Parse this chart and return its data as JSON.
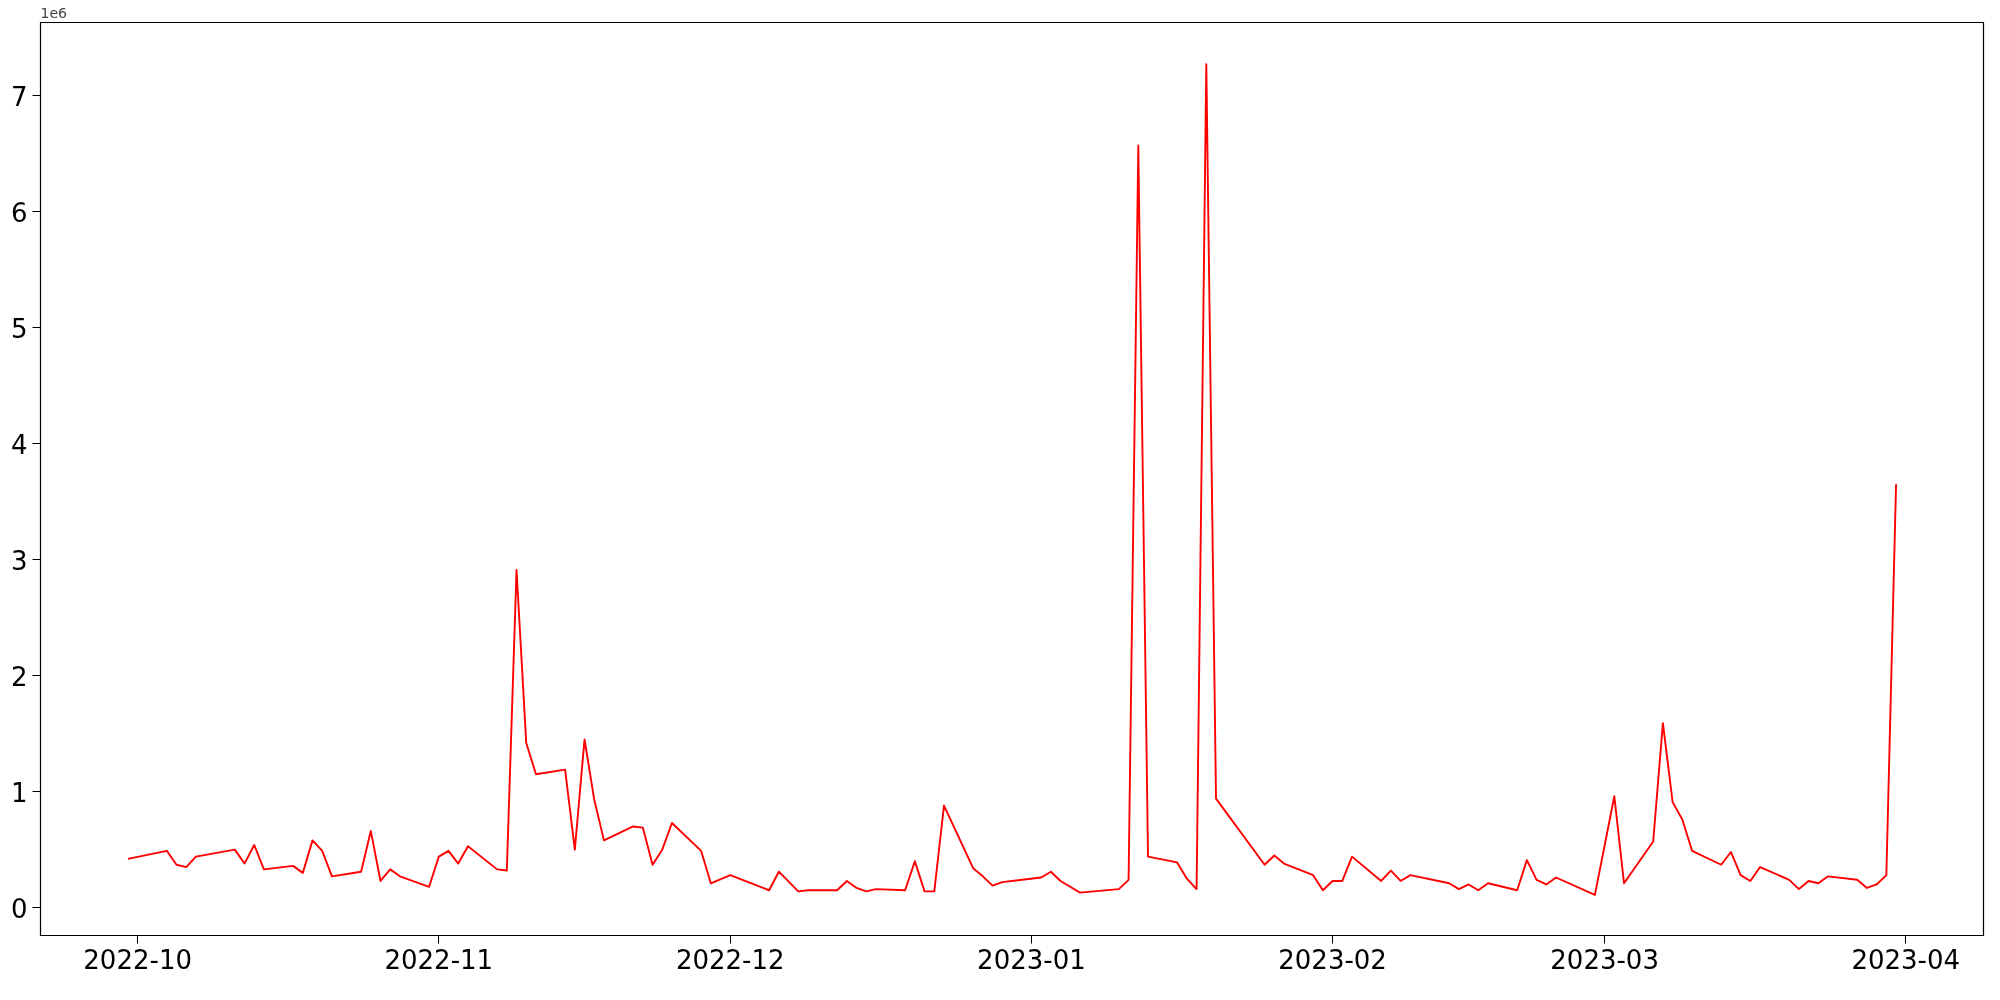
{
  "chart_data": {
    "type": "line",
    "grid": false,
    "marker": "none",
    "line_style": "solid",
    "xlim": [
      "2022-09-21",
      "2023-04-09"
    ],
    "xticks": [
      {
        "value": "2022-10-01",
        "label": "2022-10"
      },
      {
        "value": "2022-11-01",
        "label": "2022-11"
      },
      {
        "value": "2022-12-01",
        "label": "2022-12"
      },
      {
        "value": "2023-01-01",
        "label": "2023-01"
      },
      {
        "value": "2023-02-01",
        "label": "2023-02"
      },
      {
        "value": "2023-03-01",
        "label": "2023-03"
      },
      {
        "value": "2023-04-01",
        "label": "2023-04"
      }
    ],
    "ylim": [
      -0.24,
      7.63
    ],
    "yticks": [
      0,
      1,
      2,
      3,
      4,
      5,
      6,
      7
    ],
    "annotations": [
      "1e6"
    ],
    "x": [
      "2022-09-30",
      "2022-10-04",
      "2022-10-05",
      "2022-10-06",
      "2022-10-07",
      "2022-10-11",
      "2022-10-12",
      "2022-10-13",
      "2022-10-14",
      "2022-10-17",
      "2022-10-18",
      "2022-10-19",
      "2022-10-20",
      "2022-10-21",
      "2022-10-24",
      "2022-10-25",
      "2022-10-26",
      "2022-10-27",
      "2022-10-28",
      "2022-10-31",
      "2022-11-01",
      "2022-11-02",
      "2022-11-03",
      "2022-11-04",
      "2022-11-07",
      "2022-11-08",
      "2022-11-09",
      "2022-11-10",
      "2022-11-11",
      "2022-11-14",
      "2022-11-15",
      "2022-11-16",
      "2022-11-17",
      "2022-11-18",
      "2022-11-21",
      "2022-11-22",
      "2022-11-23",
      "2022-11-24",
      "2022-11-25",
      "2022-11-28",
      "2022-11-29",
      "2022-12-01",
      "2022-12-05",
      "2022-12-06",
      "2022-12-08",
      "2022-12-09",
      "2022-12-12",
      "2022-12-13",
      "2022-12-14",
      "2022-12-15",
      "2022-12-16",
      "2022-12-19",
      "2022-12-20",
      "2022-12-21",
      "2022-12-22",
      "2022-12-23",
      "2022-12-26",
      "2022-12-27",
      "2022-12-28",
      "2022-12-29",
      "2023-01-02",
      "2023-01-03",
      "2023-01-04",
      "2023-01-06",
      "2023-01-10",
      "2023-01-11",
      "2023-01-12",
      "2023-01-13",
      "2023-01-16",
      "2023-01-17",
      "2023-01-18",
      "2023-01-19",
      "2023-01-20",
      "2023-01-25",
      "2023-01-26",
      "2023-01-27",
      "2023-01-30",
      "2023-01-31",
      "2023-02-01",
      "2023-02-02",
      "2023-02-03",
      "2023-02-06",
      "2023-02-07",
      "2023-02-08",
      "2023-02-09",
      "2023-02-13",
      "2023-02-14",
      "2023-02-15",
      "2023-02-16",
      "2023-02-17",
      "2023-02-20",
      "2023-02-21",
      "2023-02-22",
      "2023-02-23",
      "2023-02-24",
      "2023-02-28",
      "2023-03-02",
      "2023-03-03",
      "2023-03-06",
      "2023-03-07",
      "2023-03-08",
      "2023-03-09",
      "2023-03-10",
      "2023-03-13",
      "2023-03-14",
      "2023-03-15",
      "2023-03-16",
      "2023-03-17",
      "2023-03-20",
      "2023-03-21",
      "2023-03-22",
      "2023-03-23",
      "2023-03-24",
      "2023-03-27",
      "2023-03-28",
      "2023-03-29",
      "2023-03-30",
      "2023-03-31"
    ],
    "series": [
      {
        "color": "#ff0000",
        "values": [
          0.42,
          0.49,
          0.37,
          0.35,
          0.44,
          0.5,
          0.38,
          0.54,
          0.33,
          0.36,
          0.3,
          0.58,
          0.49,
          0.27,
          0.31,
          0.66,
          0.23,
          0.33,
          0.27,
          0.18,
          0.44,
          0.49,
          0.38,
          0.53,
          0.33,
          0.32,
          2.91,
          1.42,
          1.15,
          1.19,
          0.5,
          1.45,
          0.93,
          0.58,
          0.7,
          0.69,
          0.37,
          0.5,
          0.73,
          0.49,
          0.21,
          0.28,
          0.15,
          0.31,
          0.14,
          0.15,
          0.15,
          0.23,
          0.17,
          0.14,
          0.16,
          0.15,
          0.4,
          0.14,
          0.14,
          0.88,
          0.34,
          0.27,
          0.19,
          0.22,
          0.26,
          0.31,
          0.23,
          0.13,
          0.16,
          0.24,
          6.57,
          0.44,
          0.39,
          0.25,
          0.16,
          7.27,
          0.94,
          0.37,
          0.45,
          0.38,
          0.28,
          0.15,
          0.23,
          0.23,
          0.44,
          0.23,
          0.32,
          0.23,
          0.28,
          0.21,
          0.16,
          0.2,
          0.15,
          0.21,
          0.15,
          0.41,
          0.24,
          0.2,
          0.26,
          0.11,
          0.96,
          0.21,
          0.57,
          1.59,
          0.91,
          0.76,
          0.49,
          0.37,
          0.48,
          0.28,
          0.23,
          0.35,
          0.24,
          0.16,
          0.23,
          0.21,
          0.27,
          0.24,
          0.17,
          0.2,
          0.28,
          3.65
        ]
      }
    ]
  }
}
